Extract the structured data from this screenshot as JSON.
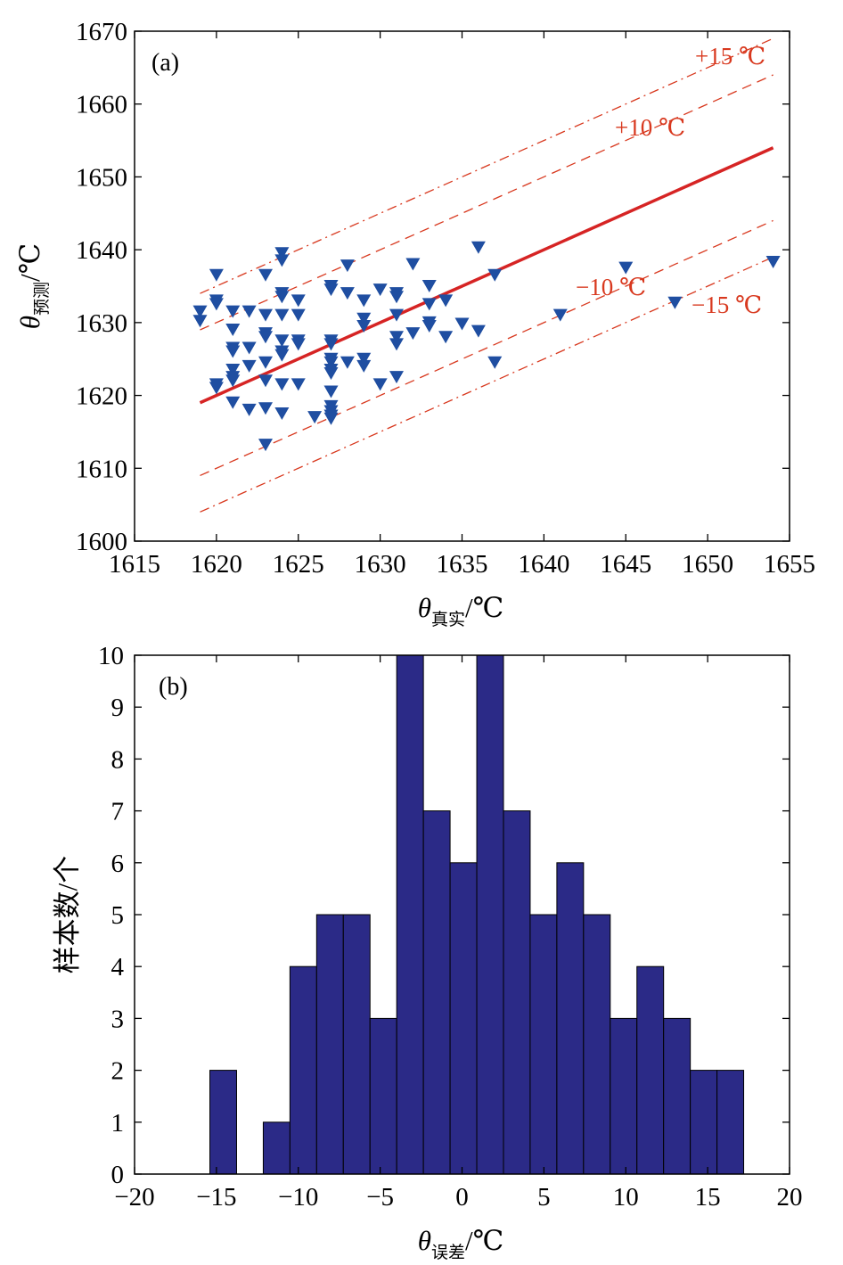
{
  "chart_data": [
    {
      "type": "scatter",
      "panel_label": "(a)",
      "x_axis": {
        "symbol": "θ",
        "subscript": "真实",
        "unit": "/℃",
        "range": [
          1615,
          1655
        ],
        "ticks": [
          1615,
          1620,
          1625,
          1630,
          1635,
          1640,
          1645,
          1650,
          1655
        ]
      },
      "y_axis": {
        "symbol": "θ",
        "subscript": "预测",
        "unit": "/℃",
        "range": [
          1600,
          1670
        ],
        "ticks": [
          1600,
          1610,
          1620,
          1630,
          1640,
          1650,
          1660,
          1670
        ]
      },
      "marker": "down-triangle",
      "marker_color": "#1f4ea1",
      "line_color": "#d62424",
      "band_color": "#d8381e",
      "reference_line": {
        "name": "y = x",
        "x": [
          1619,
          1654
        ]
      },
      "bands": [
        {
          "label": "+15 ℃",
          "offset": 15,
          "style": "dash-dot"
        },
        {
          "label": "+10 ℃",
          "offset": 10,
          "style": "dashed"
        },
        {
          "label": "−10 ℃",
          "offset": -10,
          "style": "dashed"
        },
        {
          "label": "−15 ℃",
          "offset": -15,
          "style": "dash-dot"
        }
      ],
      "points": [
        [
          1619,
          1631.5
        ],
        [
          1619,
          1630.2
        ],
        [
          1620,
          1636.5
        ],
        [
          1620,
          1633
        ],
        [
          1620,
          1632.5
        ],
        [
          1620,
          1621.5
        ],
        [
          1620,
          1621
        ],
        [
          1621,
          1631.5
        ],
        [
          1621,
          1629
        ],
        [
          1621,
          1626.5
        ],
        [
          1621,
          1626
        ],
        [
          1621,
          1623.5
        ],
        [
          1621,
          1622.5
        ],
        [
          1621,
          1622
        ],
        [
          1621,
          1619
        ],
        [
          1622,
          1631.5
        ],
        [
          1622,
          1626.5
        ],
        [
          1622,
          1624
        ],
        [
          1622,
          1618
        ],
        [
          1623,
          1636.5
        ],
        [
          1623,
          1631
        ],
        [
          1623,
          1628.5
        ],
        [
          1623,
          1628
        ],
        [
          1623,
          1624.5
        ],
        [
          1623,
          1622
        ],
        [
          1623,
          1618.2
        ],
        [
          1623,
          1613.2
        ],
        [
          1624,
          1639.5
        ],
        [
          1624,
          1638.5
        ],
        [
          1624,
          1634
        ],
        [
          1624,
          1633.5
        ],
        [
          1624,
          1631
        ],
        [
          1624,
          1627.5
        ],
        [
          1624,
          1626
        ],
        [
          1624,
          1625.5
        ],
        [
          1624,
          1621.5
        ],
        [
          1624,
          1617.5
        ],
        [
          1625,
          1633
        ],
        [
          1625,
          1631
        ],
        [
          1625,
          1627.5
        ],
        [
          1625,
          1627
        ],
        [
          1625,
          1621.5
        ],
        [
          1626,
          1617
        ],
        [
          1627,
          1635
        ],
        [
          1627,
          1634.5
        ],
        [
          1627,
          1627.5
        ],
        [
          1627,
          1627
        ],
        [
          1627,
          1625
        ],
        [
          1627,
          1624.5
        ],
        [
          1627,
          1623.5
        ],
        [
          1627,
          1623
        ],
        [
          1627,
          1620.5
        ],
        [
          1627,
          1618.5
        ],
        [
          1627,
          1617.8
        ],
        [
          1627,
          1617.2
        ],
        [
          1627,
          1616.8
        ],
        [
          1628,
          1637.8
        ],
        [
          1628,
          1634
        ],
        [
          1628,
          1624.5
        ],
        [
          1629,
          1633
        ],
        [
          1629,
          1630.5
        ],
        [
          1629,
          1629.5
        ],
        [
          1629,
          1625
        ],
        [
          1629,
          1624
        ],
        [
          1630,
          1634.5
        ],
        [
          1630,
          1621.5
        ],
        [
          1631,
          1634
        ],
        [
          1631,
          1633.5
        ],
        [
          1631,
          1631
        ],
        [
          1631,
          1628
        ],
        [
          1631,
          1627
        ],
        [
          1631,
          1622.5
        ],
        [
          1632,
          1638
        ],
        [
          1632,
          1628.5
        ],
        [
          1633,
          1635
        ],
        [
          1633,
          1632.5
        ],
        [
          1633,
          1630
        ],
        [
          1633,
          1629.5
        ],
        [
          1634,
          1633
        ],
        [
          1634,
          1628
        ],
        [
          1635,
          1629.8
        ],
        [
          1636,
          1640.3
        ],
        [
          1636,
          1628.8
        ],
        [
          1637,
          1636.5
        ],
        [
          1637,
          1624.5
        ],
        [
          1641,
          1631
        ],
        [
          1645,
          1637.5
        ],
        [
          1648,
          1632.7
        ],
        [
          1654,
          1638.3
        ]
      ]
    },
    {
      "type": "bar",
      "subtype": "histogram",
      "panel_label": "(b)",
      "bar_color": "#2b2a87",
      "x_axis": {
        "symbol": "θ",
        "subscript": "误差",
        "unit": "/℃",
        "range": [
          -20,
          20
        ],
        "ticks": [
          "−20",
          "−15",
          "−10",
          "−5",
          "0",
          "5",
          "10",
          "15",
          "20"
        ],
        "tick_values": [
          -20,
          -15,
          -10,
          -5,
          0,
          5,
          10,
          15,
          20
        ]
      },
      "y_axis": {
        "label": "样本数/个",
        "range": [
          0,
          10
        ],
        "ticks": [
          0,
          1,
          2,
          3,
          4,
          5,
          6,
          7,
          8,
          9,
          10
        ]
      },
      "bin_edges": [
        -15.4,
        -13.77,
        -12.14,
        -10.51,
        -8.88,
        -7.25,
        -5.62,
        -3.99,
        -2.36,
        -0.73,
        0.9,
        2.53,
        4.16,
        5.79,
        7.42,
        9.05,
        10.68,
        12.31,
        13.94,
        15.57,
        17.2
      ],
      "counts": [
        2,
        0,
        1,
        4,
        5,
        5,
        3,
        10,
        7,
        6,
        10,
        7,
        5,
        6,
        5,
        3,
        4,
        3,
        2,
        2
      ]
    }
  ]
}
